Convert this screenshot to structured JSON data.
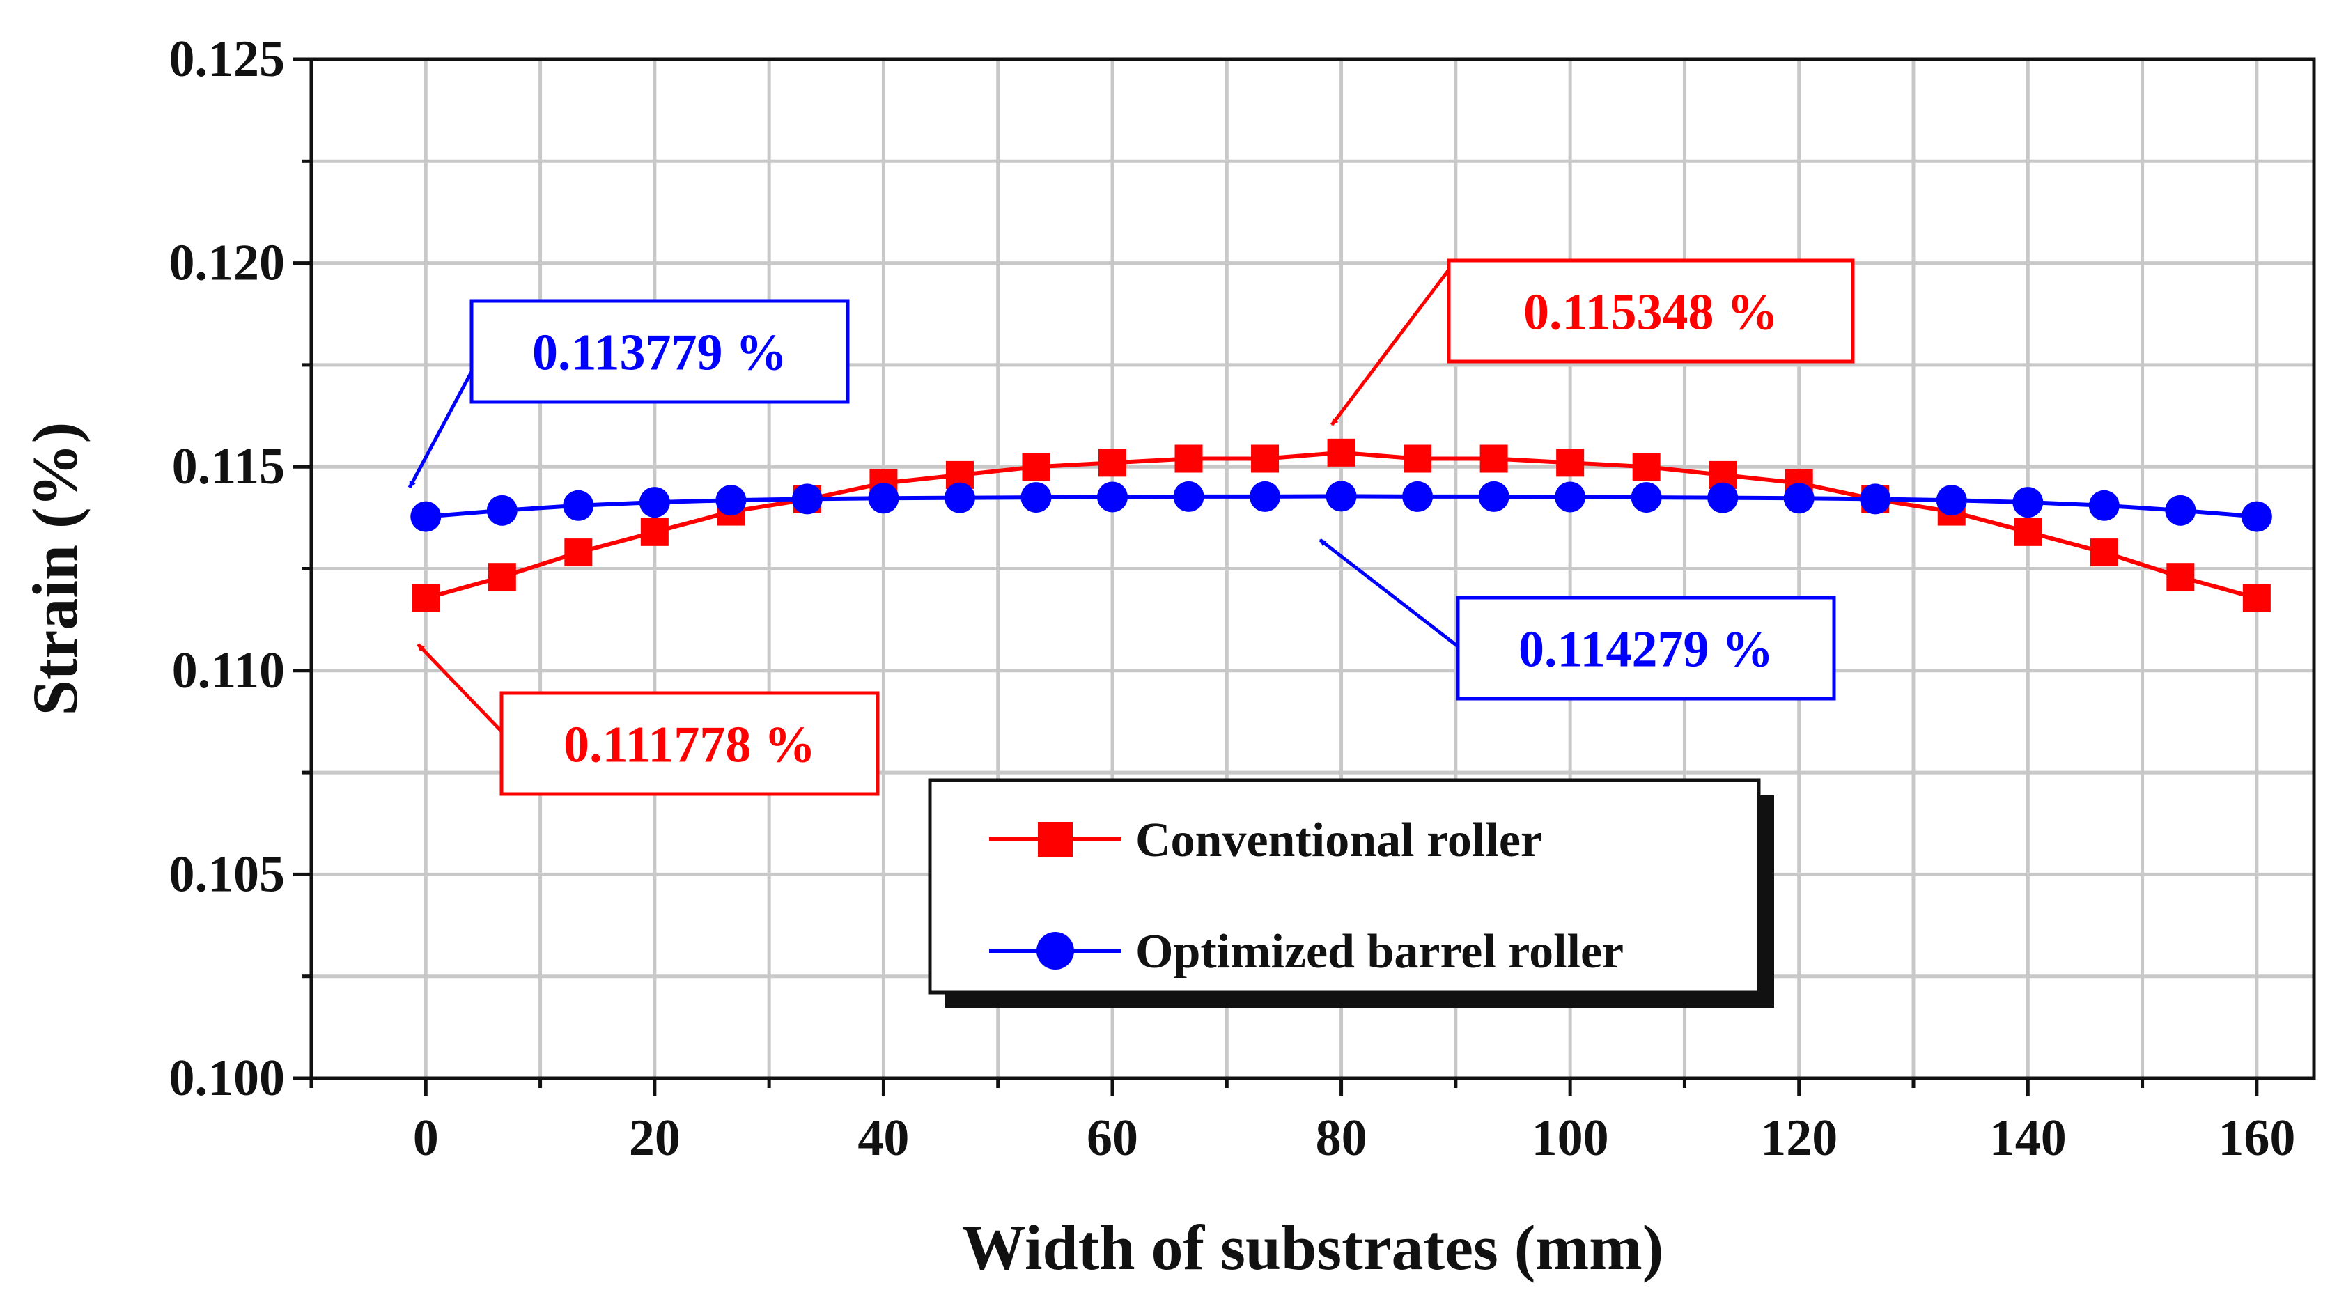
{
  "chart_data": {
    "type": "line",
    "title": "",
    "xlabel": "Width of substrates (mm)",
    "ylabel": "Strain  (%)",
    "xlim": [
      -10,
      165
    ],
    "ylim": [
      0.1,
      0.125
    ],
    "grid": true,
    "x_ticks": [
      0,
      20,
      40,
      60,
      80,
      100,
      120,
      140,
      160
    ],
    "x_tick_labels": [
      "0",
      "20",
      "40",
      "60",
      "80",
      "100",
      "120",
      "140",
      "160"
    ],
    "y_ticks": [
      0.1,
      0.105,
      0.11,
      0.115,
      0.12,
      0.125
    ],
    "y_tick_labels": [
      "0.100",
      "0.105",
      "0.110",
      "0.115",
      "0.120",
      "0.125"
    ],
    "x": [
      0,
      6.667,
      13.333,
      20,
      26.667,
      33.333,
      40,
      46.667,
      53.333,
      60,
      66.667,
      73.333,
      80,
      86.667,
      93.333,
      100,
      106.667,
      113.333,
      120,
      126.667,
      133.333,
      140,
      146.667,
      153.333,
      160
    ],
    "series": [
      {
        "name": "Conventional roller",
        "color": "#ff0000",
        "marker": "square",
        "values": [
          0.111778,
          0.1123,
          0.1129,
          0.1134,
          0.1139,
          0.1142,
          0.1146,
          0.1148,
          0.115,
          0.1151,
          0.1152,
          0.1152,
          0.115348,
          0.1152,
          0.1152,
          0.1151,
          0.115,
          0.1148,
          0.1146,
          0.1142,
          0.1139,
          0.1134,
          0.1129,
          0.1123,
          0.111778
        ]
      },
      {
        "name": "Optimized barrel roller",
        "color": "#0000ff",
        "marker": "circle",
        "values": [
          0.113779,
          0.11393,
          0.11405,
          0.11413,
          0.11418,
          0.11421,
          0.11423,
          0.11424,
          0.11425,
          0.11426,
          0.11427,
          0.11427,
          0.114279,
          0.11427,
          0.11427,
          0.11426,
          0.11425,
          0.11424,
          0.11423,
          0.11421,
          0.11418,
          0.11413,
          0.11405,
          0.11393,
          0.113779
        ]
      }
    ],
    "annotations": [
      {
        "text": "0.113779 %",
        "color": "#0000ff",
        "target_x": 0,
        "target_y": 0.113779
      },
      {
        "text": "0.115348 %",
        "color": "#ff0000",
        "target_x": 80,
        "target_y": 0.115348
      },
      {
        "text": "0.114279 %",
        "color": "#0000ff",
        "target_x": 80,
        "target_y": 0.114279
      },
      {
        "text": "0.111778 %",
        "color": "#ff0000",
        "target_x": 0,
        "target_y": 0.111778
      }
    ],
    "legend": {
      "position": "lower-center"
    }
  }
}
